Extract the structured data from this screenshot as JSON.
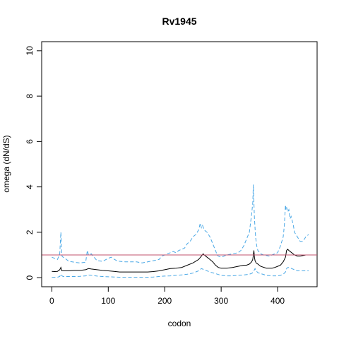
{
  "chart_data": {
    "type": "line",
    "title": "Rv1945",
    "xlabel": "codon",
    "ylabel": "omega (dN/dS)",
    "xlim": [
      -18,
      470
    ],
    "ylim": [
      -0.4,
      10.4
    ],
    "xticks": [
      "0",
      "100",
      "200",
      "300",
      "400"
    ],
    "xtick_values": [
      0,
      100,
      200,
      300,
      400
    ],
    "yticks": [
      "0",
      "2",
      "4",
      "6",
      "8",
      "10"
    ],
    "ytick_values": [
      0,
      2,
      4,
      6,
      8,
      10
    ],
    "grid": false,
    "reference_line": {
      "y": 1,
      "color": "#c0506e"
    },
    "colors": {
      "estimate": "#000000",
      "interval": "#4aa8e6"
    },
    "series": [
      {
        "role": "upper",
        "style": "dashed",
        "x": [
          0,
          5,
          10,
          14,
          16,
          17,
          18,
          20,
          25,
          30,
          40,
          50,
          60,
          63,
          65,
          70,
          75,
          80,
          90,
          100,
          105,
          110,
          115,
          120,
          130,
          140,
          150,
          160,
          170,
          180,
          190,
          195,
          200,
          205,
          210,
          215,
          220,
          225,
          230,
          235,
          240,
          245,
          250,
          255,
          260,
          263,
          265,
          267,
          270,
          275,
          280,
          285,
          290,
          293,
          295,
          300,
          305,
          310,
          320,
          330,
          335,
          340,
          345,
          350,
          352,
          354,
          356,
          357,
          358,
          359,
          360,
          361,
          362,
          363,
          365,
          370,
          375,
          380,
          385,
          390,
          395,
          400,
          405,
          410,
          412,
          414,
          415,
          416,
          418,
          420,
          422,
          424,
          426,
          428,
          430,
          435,
          440,
          445,
          450,
          455
        ],
        "y": [
          0.9,
          0.85,
          0.8,
          1.05,
          2.0,
          1.3,
          0.95,
          0.9,
          0.82,
          0.72,
          0.68,
          0.65,
          0.68,
          1.2,
          1.0,
          1.05,
          0.9,
          0.75,
          0.72,
          0.85,
          0.9,
          0.82,
          0.75,
          0.72,
          0.7,
          0.7,
          0.7,
          0.65,
          0.7,
          0.75,
          0.8,
          0.95,
          1.0,
          1.05,
          1.1,
          1.15,
          1.1,
          1.2,
          1.25,
          1.3,
          1.5,
          1.6,
          1.8,
          1.9,
          2.1,
          2.4,
          2.2,
          2.3,
          2.1,
          2.0,
          1.8,
          1.5,
          1.2,
          1.0,
          0.95,
          0.9,
          0.95,
          1.0,
          1.05,
          1.1,
          1.2,
          1.4,
          1.7,
          2.0,
          2.4,
          2.8,
          3.3,
          4.1,
          3.3,
          2.6,
          2.2,
          1.8,
          1.6,
          1.4,
          1.2,
          1.05,
          1.0,
          0.98,
          0.95,
          1.0,
          1.05,
          1.1,
          1.4,
          1.8,
          2.3,
          3.2,
          3.0,
          3.1,
          2.9,
          3.0,
          2.6,
          2.7,
          2.5,
          2.3,
          2.0,
          1.8,
          1.6,
          1.6,
          1.8,
          1.9
        ]
      },
      {
        "role": "estimate",
        "style": "solid",
        "x": [
          0,
          5,
          10,
          14,
          16,
          17,
          18,
          20,
          30,
          40,
          50,
          60,
          65,
          70,
          80,
          90,
          100,
          110,
          120,
          130,
          140,
          150,
          160,
          170,
          180,
          190,
          200,
          210,
          220,
          230,
          240,
          250,
          260,
          265,
          268,
          270,
          275,
          280,
          285,
          290,
          295,
          300,
          310,
          320,
          330,
          340,
          345,
          350,
          354,
          356,
          357,
          358,
          359,
          360,
          361,
          362,
          365,
          370,
          380,
          390,
          395,
          400,
          405,
          410,
          414,
          416,
          418,
          420,
          425,
          430,
          435,
          440,
          450,
          455
        ],
        "y": [
          0.28,
          0.27,
          0.28,
          0.35,
          0.45,
          0.35,
          0.3,
          0.3,
          0.3,
          0.32,
          0.32,
          0.35,
          0.4,
          0.38,
          0.35,
          0.32,
          0.3,
          0.28,
          0.25,
          0.25,
          0.25,
          0.25,
          0.25,
          0.25,
          0.27,
          0.3,
          0.35,
          0.4,
          0.42,
          0.45,
          0.55,
          0.65,
          0.8,
          0.95,
          1.05,
          1.0,
          0.9,
          0.8,
          0.7,
          0.55,
          0.45,
          0.42,
          0.42,
          0.45,
          0.5,
          0.55,
          0.55,
          0.6,
          0.7,
          0.8,
          1.0,
          1.2,
          0.9,
          0.75,
          0.7,
          0.65,
          0.6,
          0.5,
          0.42,
          0.42,
          0.45,
          0.5,
          0.55,
          0.7,
          0.9,
          1.2,
          1.25,
          1.2,
          1.1,
          1.0,
          0.95,
          0.95,
          1.0,
          1.0
        ]
      },
      {
        "role": "lower",
        "style": "dashed",
        "x": [
          0,
          10,
          14,
          16,
          18,
          20,
          30,
          40,
          50,
          60,
          65,
          70,
          80,
          90,
          100,
          110,
          120,
          130,
          140,
          150,
          160,
          170,
          180,
          190,
          200,
          210,
          220,
          230,
          240,
          250,
          260,
          265,
          270,
          275,
          280,
          290,
          300,
          310,
          320,
          330,
          340,
          350,
          355,
          358,
          360,
          362,
          365,
          370,
          380,
          390,
          400,
          405,
          410,
          414,
          416,
          418,
          420,
          425,
          430,
          435,
          440,
          450,
          455
        ],
        "y": [
          0.02,
          0.02,
          0.05,
          0.15,
          0.08,
          0.05,
          0.05,
          0.05,
          0.06,
          0.08,
          0.12,
          0.1,
          0.07,
          0.05,
          0.04,
          0.03,
          0.02,
          0.02,
          0.02,
          0.02,
          0.02,
          0.02,
          0.03,
          0.05,
          0.07,
          0.08,
          0.1,
          0.12,
          0.15,
          0.2,
          0.3,
          0.4,
          0.35,
          0.3,
          0.25,
          0.18,
          0.1,
          0.08,
          0.08,
          0.1,
          0.12,
          0.15,
          0.2,
          0.3,
          0.4,
          0.3,
          0.22,
          0.18,
          0.1,
          0.08,
          0.08,
          0.1,
          0.15,
          0.25,
          0.4,
          0.45,
          0.45,
          0.4,
          0.35,
          0.3,
          0.3,
          0.3,
          0.3
        ]
      }
    ]
  }
}
